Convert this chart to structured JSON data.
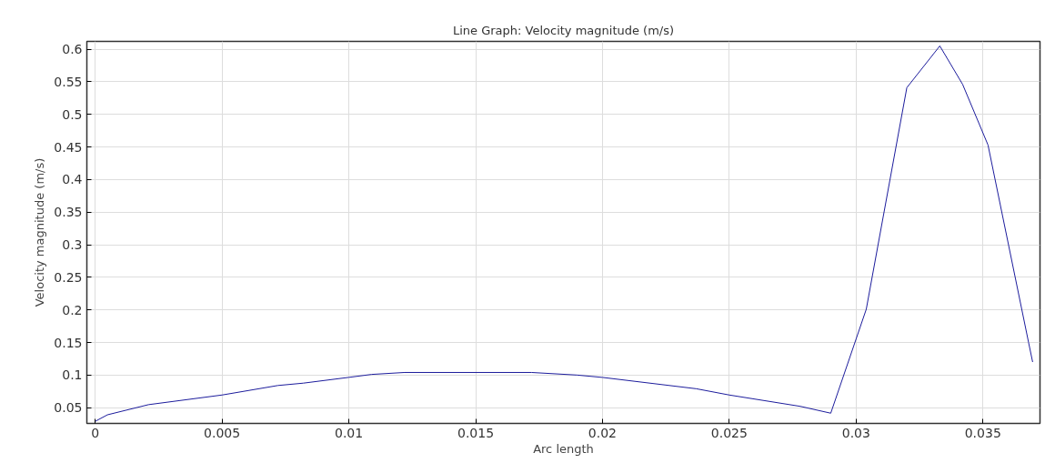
{
  "chart_data": {
    "type": "line",
    "title": "Line Graph: Velocity magnitude (m/s)",
    "xlabel": "Arc length",
    "ylabel": "Velocity magnitude (m/s)",
    "x": [
      0,
      0.00048,
      0.0021,
      0.005,
      0.0072,
      0.0082,
      0.01,
      0.0109,
      0.0122,
      0.0172,
      0.019,
      0.02,
      0.0237,
      0.025,
      0.0278,
      0.029,
      0.0304,
      0.032,
      0.0333,
      0.0342,
      0.0352,
      0.0368,
      0.03696
    ],
    "series": [
      {
        "color": "#1c1c9c",
        "values": [
          0.029,
          0.039,
          0.0546,
          0.0694,
          0.084,
          0.0876,
          0.0965,
          0.101,
          0.104,
          0.104,
          0.1,
          0.0964,
          0.079,
          0.0694,
          0.052,
          0.0415,
          0.201,
          0.541,
          0.605,
          0.546,
          0.453,
          0.15,
          0.12
        ]
      }
    ],
    "xlim": [
      -0.00033,
      0.03725
    ],
    "ylim": [
      0.0258,
      0.612
    ],
    "xticks": [
      0,
      0.005,
      0.01,
      0.015,
      0.02,
      0.025,
      0.03,
      0.035
    ],
    "yticks": [
      0.05,
      0.1,
      0.15,
      0.2,
      0.25,
      0.3,
      0.35,
      0.4,
      0.45,
      0.5,
      0.55,
      0.6
    ],
    "grid": true,
    "line_style": "solid",
    "marker": "none"
  }
}
